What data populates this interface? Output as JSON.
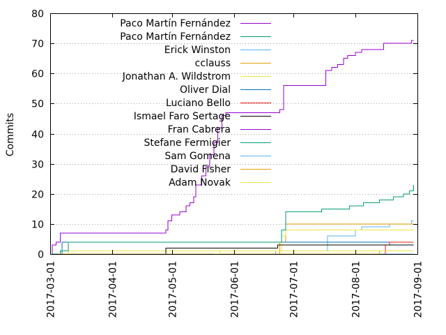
{
  "chart_data": {
    "type": "line",
    "title": "",
    "ylabel": "Commits",
    "xlabel": "",
    "ylim": [
      0,
      80
    ],
    "yticks": [
      0,
      10,
      20,
      30,
      40,
      50,
      60,
      70,
      80
    ],
    "xlim": [
      "2017-03-01",
      "2017-09-01"
    ],
    "xticks": [
      "2017-03-01",
      "2017-04-01",
      "2017-05-01",
      "2017-06-01",
      "2017-07-01",
      "2017-08-01",
      "2017-09-01"
    ],
    "grid": "horizontal dotted lines",
    "legend_position": "top-left inside plot",
    "series": [
      {
        "name": "Paco Martín Fernández",
        "color": "#9400d3",
        "points": [
          [
            "2017-03-02",
            0
          ],
          [
            "2017-03-09",
            0
          ]
        ]
      },
      {
        "name": "Paco Martín Fernández",
        "color": "#009e73",
        "points": [
          [
            "2017-03-02",
            0
          ],
          [
            "2017-03-09",
            0
          ]
        ]
      },
      {
        "name": "Erick Winston",
        "color": "#56b4e9",
        "points": [
          [
            "2017-03-05",
            0
          ],
          [
            "2017-06-20",
            0
          ],
          [
            "2017-06-22",
            1
          ],
          [
            "2017-06-29",
            1
          ],
          [
            "2017-07-01",
            1
          ],
          [
            "2017-07-16",
            1
          ],
          [
            "2017-07-18",
            6
          ],
          [
            "2017-08-01",
            8
          ],
          [
            "2017-08-04",
            9
          ],
          [
            "2017-08-15",
            9
          ],
          [
            "2017-08-18",
            10
          ],
          [
            "2017-08-27",
            10
          ],
          [
            "2017-08-29",
            11
          ],
          [
            "2017-08-30",
            11
          ]
        ]
      },
      {
        "name": "cclauss",
        "color": "#e69f00",
        "points": [
          [
            "2017-06-23",
            0
          ],
          [
            "2017-06-24",
            4
          ],
          [
            "2017-06-27",
            10
          ],
          [
            "2017-08-30",
            10
          ]
        ]
      },
      {
        "name": "Jonathan A. Wildstrom",
        "color": "#f0e442",
        "points": [
          [
            "2017-03-05",
            0
          ],
          [
            "2017-03-10",
            1
          ],
          [
            "2017-06-22",
            1
          ],
          [
            "2017-06-25",
            6
          ],
          [
            "2017-06-27",
            8
          ],
          [
            "2017-08-30",
            8
          ]
        ]
      },
      {
        "name": "Oliver Dial",
        "color": "#0072b2",
        "points": [
          [
            "2017-03-05",
            0
          ],
          [
            "2017-03-07",
            4
          ],
          [
            "2017-07-17",
            4
          ],
          [
            "2017-08-30",
            4
          ]
        ]
      },
      {
        "name": "Luciano Bello",
        "color": "#e51e10",
        "points": [
          [
            "2017-08-14",
            0
          ],
          [
            "2017-08-16",
            3
          ],
          [
            "2017-08-18",
            4
          ],
          [
            "2017-08-30",
            4
          ]
        ]
      },
      {
        "name": "Ismael Faro Sertage",
        "color": "#000000",
        "points": [
          [
            "2017-04-27",
            0
          ],
          [
            "2017-04-28",
            2
          ],
          [
            "2017-06-20",
            2
          ],
          [
            "2017-06-23",
            3
          ],
          [
            "2017-08-30",
            3
          ]
        ]
      },
      {
        "name": "Fran Cabrera",
        "color": "#9400d3",
        "points": [
          [
            "2017-03-02",
            0
          ],
          [
            "2017-03-02",
            3
          ],
          [
            "2017-03-04",
            4
          ],
          [
            "2017-03-06",
            7
          ],
          [
            "2017-04-28",
            8
          ],
          [
            "2017-04-29",
            11
          ],
          [
            "2017-05-01",
            13
          ],
          [
            "2017-05-05",
            14
          ],
          [
            "2017-05-08",
            16
          ],
          [
            "2017-05-10",
            17
          ],
          [
            "2017-05-12",
            19
          ],
          [
            "2017-05-13",
            23
          ],
          [
            "2017-05-16",
            26
          ],
          [
            "2017-05-18",
            29
          ],
          [
            "2017-05-20",
            33
          ],
          [
            "2017-05-22",
            37
          ],
          [
            "2017-05-24",
            42
          ],
          [
            "2017-05-26",
            46
          ],
          [
            "2017-05-28",
            47
          ],
          [
            "2017-06-24",
            48
          ],
          [
            "2017-06-26",
            56
          ],
          [
            "2017-07-16",
            56
          ],
          [
            "2017-07-17",
            61
          ],
          [
            "2017-07-20",
            62
          ],
          [
            "2017-07-23",
            63
          ],
          [
            "2017-07-26",
            65
          ],
          [
            "2017-07-28",
            66
          ],
          [
            "2017-08-01",
            67
          ],
          [
            "2017-08-04",
            68
          ],
          [
            "2017-08-15",
            70
          ],
          [
            "2017-08-28",
            70
          ],
          [
            "2017-08-29",
            71
          ],
          [
            "2017-08-30",
            71
          ]
        ]
      },
      {
        "name": "Stefane Fermigier",
        "color": "#009e73",
        "points": [
          [
            "2017-03-05",
            0
          ],
          [
            "2017-03-06",
            1
          ],
          [
            "2017-03-10",
            4
          ],
          [
            "2017-06-25",
            8
          ],
          [
            "2017-06-27",
            14
          ],
          [
            "2017-07-15",
            15
          ],
          [
            "2017-07-29",
            16
          ],
          [
            "2017-08-05",
            17
          ],
          [
            "2017-08-13",
            18
          ],
          [
            "2017-08-20",
            19
          ],
          [
            "2017-08-25",
            20
          ],
          [
            "2017-08-28",
            21
          ],
          [
            "2017-08-30",
            23
          ]
        ]
      },
      {
        "name": "Sam Gomena",
        "color": "#56b4e9",
        "points": [
          [
            "2017-03-05",
            0
          ],
          [
            "2017-08-30",
            0
          ]
        ]
      },
      {
        "name": "David Fisher",
        "color": "#e69f00",
        "points": [
          [
            "2017-03-05",
            0
          ],
          [
            "2017-08-11",
            0
          ],
          [
            "2017-08-13",
            1
          ],
          [
            "2017-08-30",
            1
          ]
        ]
      },
      {
        "name": "Adam Novak",
        "color": "#f0e442",
        "points": [
          [
            "2017-05-22",
            0
          ],
          [
            "2017-05-25",
            1
          ],
          [
            "2017-08-30",
            1
          ]
        ]
      }
    ]
  }
}
